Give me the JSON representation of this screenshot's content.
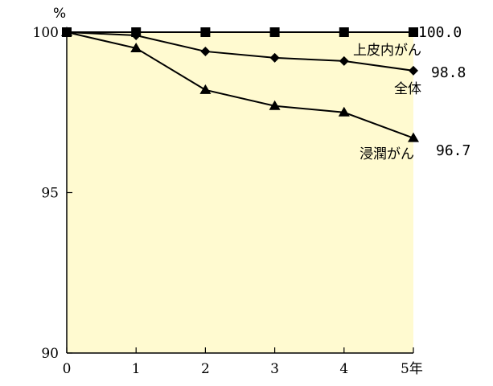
{
  "chart_data": {
    "type": "line",
    "ylabel": "%",
    "ylim": [
      90,
      100
    ],
    "yticks": [
      "90",
      "95",
      "100"
    ],
    "x": [
      0,
      1,
      2,
      3,
      4,
      5
    ],
    "xtick_labels": [
      "0",
      "1",
      "2",
      "3",
      "4",
      "5年"
    ],
    "plot_bg": "#fffad0",
    "grid": false,
    "series": [
      {
        "name": "上皮内がん",
        "marker": "square",
        "values": [
          100,
          100,
          100,
          100,
          100,
          100
        ],
        "end_label": "100.0"
      },
      {
        "name": "全体",
        "marker": "diamond",
        "values": [
          100,
          99.9,
          99.4,
          99.2,
          99.1,
          98.8
        ],
        "end_label": "98.8"
      },
      {
        "name": "浸潤がん",
        "marker": "triangle",
        "values": [
          100,
          99.5,
          98.2,
          97.7,
          97.5,
          96.7
        ],
        "end_label": "96.7"
      }
    ]
  }
}
